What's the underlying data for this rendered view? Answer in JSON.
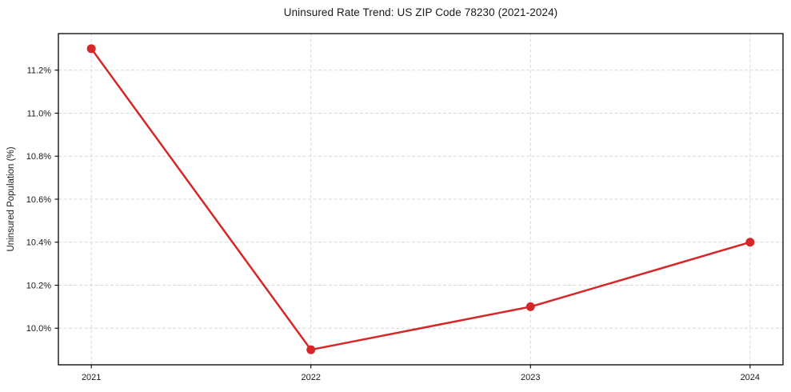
{
  "chart_data": {
    "type": "line",
    "title": "Uninsured Rate Trend: US ZIP Code 78230 (2021-2024)",
    "xlabel": "",
    "ylabel": "Uninsured Population (%)",
    "categories": [
      "2021",
      "2022",
      "2023",
      "2024"
    ],
    "values": [
      11.3,
      9.9,
      10.1,
      10.4
    ],
    "y_ticks": [
      10.0,
      10.2,
      10.4,
      10.6,
      10.8,
      11.0,
      11.2
    ],
    "y_tick_labels": [
      "10.0%",
      "10.2%",
      "10.4%",
      "10.6%",
      "10.8%",
      "11.0%",
      "11.2%"
    ],
    "ylim": [
      9.83,
      11.37
    ],
    "x_margin_fraction": 0.05,
    "grid": "dashed",
    "legend_position": "none",
    "line_color": "#d62728",
    "marker": "circle",
    "grid_color": "#d9d9d9",
    "frame_color": "#000000",
    "text_color": "#1a1a1a"
  }
}
